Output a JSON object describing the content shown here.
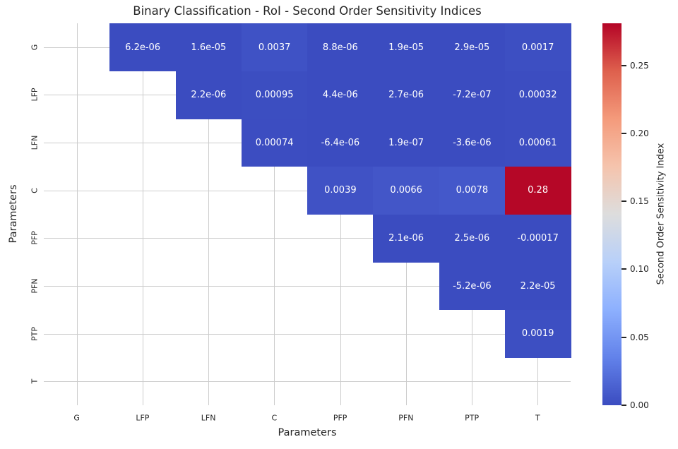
{
  "chart_data": {
    "type": "heatmap",
    "title": "Binary Classification - RoI - Second Order Sensitivity Indices",
    "xlabel": "Parameters",
    "ylabel": "Parameters",
    "categories": [
      "G",
      "LFP",
      "LFN",
      "C",
      "PFP",
      "PFN",
      "PTP",
      "T"
    ],
    "mask": "diagonal-and-lower-triangle-hidden",
    "colormap": "coolwarm",
    "vmin": -0.00017,
    "vmax": 0.281,
    "grid": true,
    "cells": [
      {
        "row": "G",
        "col": "LFP",
        "value": 6.2e-06,
        "label": "6.2e-06"
      },
      {
        "row": "G",
        "col": "LFN",
        "value": 1.6e-05,
        "label": "1.6e-05"
      },
      {
        "row": "G",
        "col": "C",
        "value": 0.0037,
        "label": "0.0037"
      },
      {
        "row": "G",
        "col": "PFP",
        "value": 8.8e-06,
        "label": "8.8e-06"
      },
      {
        "row": "G",
        "col": "PFN",
        "value": 1.9e-05,
        "label": "1.9e-05"
      },
      {
        "row": "G",
        "col": "PTP",
        "value": 2.9e-05,
        "label": "2.9e-05"
      },
      {
        "row": "G",
        "col": "T",
        "value": 0.0017,
        "label": "0.0017"
      },
      {
        "row": "LFP",
        "col": "LFN",
        "value": 2.2e-06,
        "label": "2.2e-06"
      },
      {
        "row": "LFP",
        "col": "C",
        "value": 0.00095,
        "label": "0.00095"
      },
      {
        "row": "LFP",
        "col": "PFP",
        "value": 4.4e-06,
        "label": "4.4e-06"
      },
      {
        "row": "LFP",
        "col": "PFN",
        "value": 2.7e-06,
        "label": "2.7e-06"
      },
      {
        "row": "LFP",
        "col": "PTP",
        "value": -7.2e-07,
        "label": "-7.2e-07"
      },
      {
        "row": "LFP",
        "col": "T",
        "value": 0.00032,
        "label": "0.00032"
      },
      {
        "row": "LFN",
        "col": "C",
        "value": 0.00074,
        "label": "0.00074"
      },
      {
        "row": "LFN",
        "col": "PFP",
        "value": -6.4e-06,
        "label": "-6.4e-06"
      },
      {
        "row": "LFN",
        "col": "PFN",
        "value": 1.9e-07,
        "label": "1.9e-07"
      },
      {
        "row": "LFN",
        "col": "PTP",
        "value": -3.6e-06,
        "label": "-3.6e-06"
      },
      {
        "row": "LFN",
        "col": "T",
        "value": 0.00061,
        "label": "0.00061"
      },
      {
        "row": "C",
        "col": "PFP",
        "value": 0.0039,
        "label": "0.0039"
      },
      {
        "row": "C",
        "col": "PFN",
        "value": 0.0066,
        "label": "0.0066"
      },
      {
        "row": "C",
        "col": "PTP",
        "value": 0.0078,
        "label": "0.0078"
      },
      {
        "row": "C",
        "col": "T",
        "value": 0.28,
        "label": "0.28"
      },
      {
        "row": "PFP",
        "col": "PFN",
        "value": 2.1e-06,
        "label": "2.1e-06"
      },
      {
        "row": "PFP",
        "col": "PTP",
        "value": 2.5e-06,
        "label": "2.5e-06"
      },
      {
        "row": "PFP",
        "col": "T",
        "value": -0.00017,
        "label": "-0.00017"
      },
      {
        "row": "PFN",
        "col": "PTP",
        "value": -5.2e-06,
        "label": "-5.2e-06"
      },
      {
        "row": "PFN",
        "col": "T",
        "value": 2.2e-05,
        "label": "2.2e-05"
      },
      {
        "row": "PTP",
        "col": "T",
        "value": 0.0019,
        "label": "0.0019"
      }
    ],
    "colorbar": {
      "label": "Second Order Sensitivity Index",
      "ticks": [
        {
          "value": 0.25,
          "label": "0.25"
        },
        {
          "value": 0.2,
          "label": "0.20"
        },
        {
          "value": 0.15,
          "label": "0.15"
        },
        {
          "value": 0.1,
          "label": "0.10"
        },
        {
          "value": 0.05,
          "label": "0.05"
        },
        {
          "value": 0.0,
          "label": "0.00"
        }
      ]
    },
    "colors": {
      "grid": "#cccccc",
      "text": "#262626",
      "cell_text": "#ffffff",
      "min_color": "#3b4cc0",
      "max_color": "#b40426"
    }
  }
}
